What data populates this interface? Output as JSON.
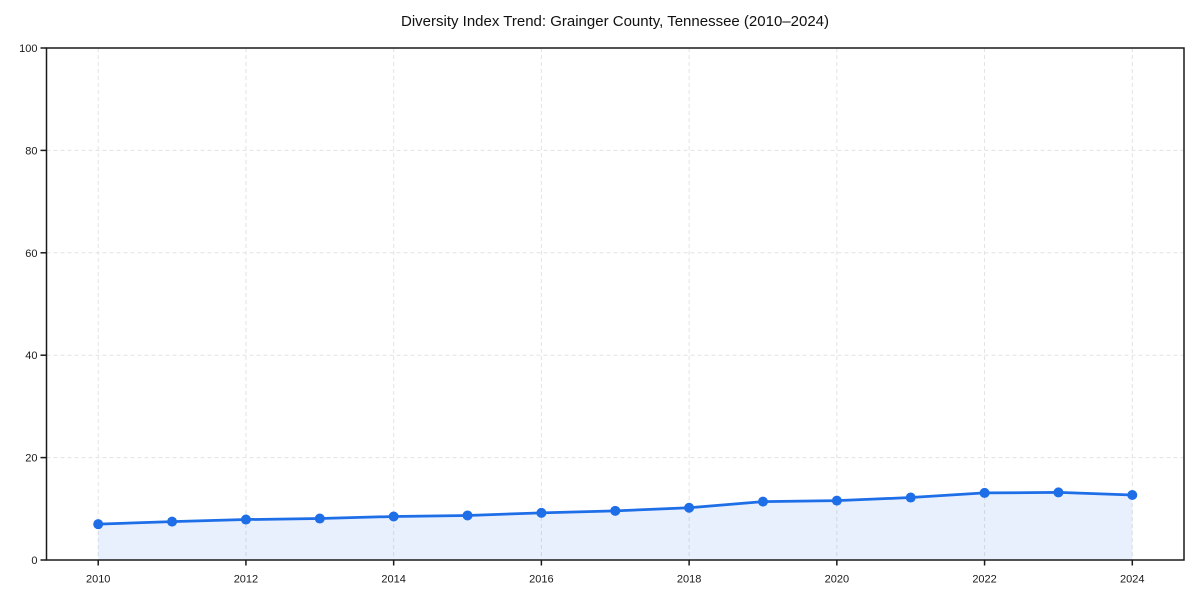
{
  "chart_data": {
    "type": "line",
    "title": "Diversity Index Trend: Grainger County, Tennessee (2010–2024)",
    "series_name": "Diversity Index",
    "x": [
      2010,
      2011,
      2012,
      2013,
      2014,
      2015,
      2016,
      2017,
      2018,
      2019,
      2020,
      2021,
      2022,
      2023,
      2024
    ],
    "values": [
      7.0,
      7.5,
      7.9,
      8.1,
      8.5,
      8.7,
      9.2,
      9.6,
      10.2,
      11.4,
      11.6,
      12.2,
      13.1,
      13.2,
      12.7
    ],
    "xlabel": "",
    "ylabel": "",
    "xticks": [
      2010,
      2012,
      2014,
      2016,
      2018,
      2020,
      2022,
      2024
    ],
    "yticks": [
      0,
      20,
      40,
      60,
      80,
      100
    ],
    "ylim": [
      0,
      100
    ],
    "x_padding": 0.7,
    "grid": "dashed",
    "legend": "none",
    "fill_under_line": true,
    "markers": "circle",
    "colors": {
      "line": "#1e6ee8",
      "marker": "#1e6ee8",
      "fill": "#1e6ee8",
      "fill_opacity": 0.1,
      "grid": "#e3e3e3",
      "axis": "#1a1a1a",
      "text": "#1a1a1a",
      "background": "#ffffff"
    }
  }
}
